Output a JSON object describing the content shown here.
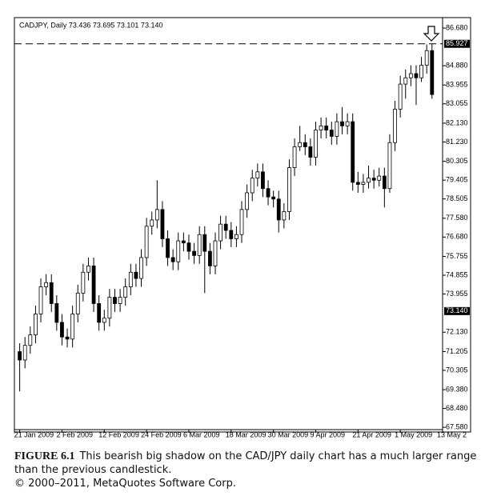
{
  "chart_data": {
    "type": "candlestick",
    "title": "CADJPY, Daily 73.436 73.695 73.101 73.140",
    "up_color": "#ffffff",
    "down_color": "#000000",
    "edge_color": "#000000",
    "xlim": [
      -1,
      80
    ],
    "ylim": [
      67.47,
      87.18
    ],
    "xticks": [
      {
        "value": 0,
        "label": "21 Jan 2009"
      },
      {
        "value": 8,
        "label": "2 Feb 2009"
      },
      {
        "value": 16,
        "label": "12 Feb 2009"
      },
      {
        "value": 24,
        "label": "24 Feb 2009"
      },
      {
        "value": 32,
        "label": "6 Mar 2009"
      },
      {
        "value": 40,
        "label": "18 Mar 2009"
      },
      {
        "value": 48,
        "label": "30 Mar 2009"
      },
      {
        "value": 56,
        "label": "9 Apr 2009"
      },
      {
        "value": 64,
        "label": "21 Apr 2009"
      },
      {
        "value": 72,
        "label": "1 May 2009"
      },
      {
        "value": 80,
        "label": "13 May 2"
      }
    ],
    "yticks": [
      {
        "value": 86.68,
        "label": "86.680"
      },
      {
        "value": 84.88,
        "label": "84.880"
      },
      {
        "value": 83.955,
        "label": "83.955"
      },
      {
        "value": 83.055,
        "label": "83.055"
      },
      {
        "value": 82.13,
        "label": "82.130"
      },
      {
        "value": 81.23,
        "label": "81.230"
      },
      {
        "value": 80.305,
        "label": "80.305"
      },
      {
        "value": 79.405,
        "label": "79.405"
      },
      {
        "value": 78.505,
        "label": "78.505"
      },
      {
        "value": 77.58,
        "label": "77.580"
      },
      {
        "value": 76.68,
        "label": "76.680"
      },
      {
        "value": 75.755,
        "label": "75.755"
      },
      {
        "value": 74.855,
        "label": "74.855"
      },
      {
        "value": 73.955,
        "label": "73.955"
      },
      {
        "value": 72.13,
        "label": "72.130"
      },
      {
        "value": 71.205,
        "label": "71.205"
      },
      {
        "value": 70.305,
        "label": "70.305"
      },
      {
        "value": 69.38,
        "label": "69.380"
      },
      {
        "value": 68.48,
        "label": "68.480"
      },
      {
        "value": 67.58,
        "label": "67.580"
      }
    ],
    "levels": [
      {
        "value": 85.927,
        "label": "85.927",
        "line": true
      },
      {
        "value": 73.14,
        "label": "73.140",
        "line": false
      }
    ],
    "candles": [
      [
        71.2,
        71.6,
        69.3,
        70.8
      ],
      [
        70.8,
        71.9,
        70.4,
        71.5
      ],
      [
        71.5,
        72.4,
        71.1,
        72.0
      ],
      [
        72.0,
        73.4,
        71.6,
        73.0
      ],
      [
        73.0,
        74.7,
        72.6,
        74.3
      ],
      [
        74.3,
        74.9,
        73.9,
        74.5
      ],
      [
        74.5,
        74.9,
        73.1,
        73.5
      ],
      [
        73.5,
        73.9,
        72.2,
        72.6
      ],
      [
        72.6,
        73.0,
        71.5,
        71.9
      ],
      [
        71.9,
        72.3,
        71.4,
        71.8
      ],
      [
        71.8,
        73.4,
        71.4,
        73.0
      ],
      [
        73.0,
        74.4,
        72.6,
        74.0
      ],
      [
        74.0,
        75.4,
        73.6,
        75.0
      ],
      [
        75.0,
        75.7,
        74.6,
        75.3
      ],
      [
        75.3,
        75.7,
        73.1,
        73.5
      ],
      [
        73.5,
        73.9,
        72.2,
        72.6
      ],
      [
        72.6,
        73.2,
        72.2,
        72.8
      ],
      [
        72.8,
        74.2,
        72.4,
        73.8
      ],
      [
        73.8,
        74.2,
        73.1,
        73.5
      ],
      [
        73.5,
        74.2,
        73.1,
        73.8
      ],
      [
        73.8,
        74.7,
        73.4,
        74.3
      ],
      [
        74.3,
        75.4,
        73.9,
        75.0
      ],
      [
        75.0,
        75.4,
        74.3,
        74.7
      ],
      [
        74.7,
        76.1,
        74.3,
        75.7
      ],
      [
        75.7,
        77.6,
        75.3,
        77.2
      ],
      [
        77.2,
        77.9,
        76.8,
        77.5
      ],
      [
        77.5,
        79.4,
        77.1,
        78.0
      ],
      [
        78.0,
        78.4,
        76.2,
        76.6
      ],
      [
        76.6,
        77.0,
        75.3,
        75.7
      ],
      [
        75.7,
        76.1,
        75.1,
        75.5
      ],
      [
        75.5,
        76.9,
        75.1,
        76.5
      ],
      [
        76.5,
        76.9,
        76.0,
        76.4
      ],
      [
        76.4,
        76.8,
        75.6,
        76.0
      ],
      [
        76.0,
        76.4,
        75.4,
        75.8
      ],
      [
        75.8,
        77.2,
        75.4,
        76.8
      ],
      [
        76.8,
        77.2,
        74.0,
        76.0
      ],
      [
        76.0,
        76.4,
        74.9,
        75.3
      ],
      [
        75.3,
        76.9,
        74.9,
        76.5
      ],
      [
        76.5,
        77.7,
        76.1,
        77.3
      ],
      [
        77.3,
        77.7,
        76.6,
        77.0
      ],
      [
        77.0,
        77.4,
        76.2,
        76.6
      ],
      [
        76.6,
        77.2,
        76.2,
        76.8
      ],
      [
        76.8,
        78.4,
        76.4,
        78.0
      ],
      [
        78.0,
        79.2,
        77.6,
        78.8
      ],
      [
        78.8,
        79.9,
        78.4,
        79.5
      ],
      [
        79.5,
        80.2,
        79.1,
        79.8
      ],
      [
        79.8,
        80.2,
        78.6,
        79.0
      ],
      [
        79.0,
        79.4,
        78.2,
        78.6
      ],
      [
        78.6,
        78.9,
        78.1,
        78.5
      ],
      [
        78.5,
        78.9,
        76.9,
        77.5
      ],
      [
        77.5,
        78.3,
        77.1,
        77.9
      ],
      [
        77.9,
        80.4,
        77.5,
        80.0
      ],
      [
        80.0,
        81.4,
        79.6,
        81.0
      ],
      [
        81.0,
        82.0,
        80.8,
        81.2
      ],
      [
        81.2,
        81.6,
        80.6,
        81.0
      ],
      [
        81.0,
        81.4,
        80.1,
        80.5
      ],
      [
        80.5,
        82.2,
        80.1,
        81.8
      ],
      [
        81.8,
        82.4,
        81.4,
        82.0
      ],
      [
        82.0,
        82.4,
        81.4,
        81.8
      ],
      [
        81.8,
        82.2,
        81.1,
        81.5
      ],
      [
        81.5,
        82.6,
        81.1,
        82.2
      ],
      [
        82.2,
        82.9,
        81.6,
        82.0
      ],
      [
        82.0,
        82.6,
        81.6,
        82.2
      ],
      [
        82.2,
        82.6,
        78.9,
        79.3
      ],
      [
        79.3,
        79.8,
        78.8,
        79.2
      ],
      [
        79.2,
        79.7,
        78.8,
        79.3
      ],
      [
        79.3,
        80.1,
        79.0,
        79.5
      ],
      [
        79.5,
        79.9,
        79.0,
        79.4
      ],
      [
        79.4,
        80.0,
        79.1,
        79.6
      ],
      [
        79.6,
        80.0,
        78.1,
        79.0
      ],
      [
        79.0,
        81.6,
        78.8,
        81.2
      ],
      [
        81.2,
        83.2,
        80.8,
        82.8
      ],
      [
        82.8,
        84.4,
        82.4,
        84.0
      ],
      [
        84.0,
        84.7,
        83.3,
        84.3
      ],
      [
        84.3,
        84.9,
        83.9,
        84.5
      ],
      [
        84.5,
        84.9,
        83.0,
        84.3
      ],
      [
        84.3,
        85.3,
        84.1,
        84.9
      ],
      [
        84.9,
        85.9,
        84.5,
        85.6
      ],
      [
        85.6,
        85.927,
        83.3,
        83.5
      ]
    ]
  },
  "figure": {
    "label": "FIGURE 6.1",
    "text": "This bearish big shadow on the CAD/JPY daily chart has a much larger range than the previous candlestick.",
    "credit": "© 2000–2011, MetaQuotes Software Corp."
  }
}
